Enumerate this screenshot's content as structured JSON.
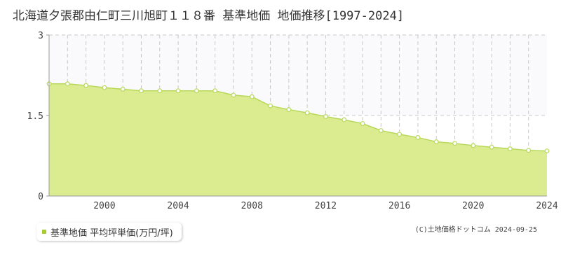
{
  "colors": {
    "area_fill": "#dbeb8f",
    "line": "#b7d85a",
    "marker_fill": "#ffffff",
    "grid": "#c8c8c8",
    "legend_swatch": "#aacc33"
  },
  "chart_data": {
    "type": "area",
    "title": "北海道夕張郡由仁町三川旭町１１８番 基準地価 地価推移[1997-2024]",
    "series": [
      {
        "name": "基準地価 平均坪単価(万円/坪)",
        "x": [
          1997,
          1998,
          1999,
          2000,
          2001,
          2002,
          2003,
          2004,
          2005,
          2006,
          2007,
          2008,
          2009,
          2010,
          2011,
          2012,
          2013,
          2014,
          2015,
          2016,
          2017,
          2018,
          2019,
          2020,
          2021,
          2022,
          2023,
          2024
        ],
        "values": [
          2.09,
          2.09,
          2.06,
          2.02,
          1.99,
          1.96,
          1.96,
          1.96,
          1.96,
          1.96,
          1.88,
          1.85,
          1.68,
          1.61,
          1.55,
          1.48,
          1.42,
          1.35,
          1.22,
          1.15,
          1.09,
          1.01,
          0.98,
          0.94,
          0.91,
          0.88,
          0.85,
          0.84
        ]
      }
    ],
    "ylim": [
      0,
      3
    ],
    "yticks": [
      0,
      1.5,
      3
    ],
    "ytick_labels": [
      "0",
      "1.5",
      "3"
    ],
    "xlim": [
      1997,
      2024
    ],
    "xticks": [
      2000,
      2004,
      2008,
      2012,
      2016,
      2020,
      2024
    ],
    "xtick_labels": [
      "2000",
      "2004",
      "2008",
      "2012",
      "2016",
      "2020",
      "2024"
    ],
    "grid": true
  },
  "legend": {
    "label": "基準地価 平均坪単価(万円/坪)"
  },
  "copyright": "(C)土地価格ドットコム 2024-09-25"
}
